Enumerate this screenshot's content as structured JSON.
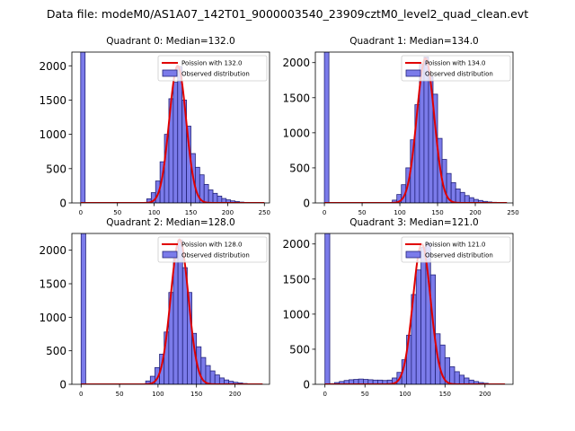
{
  "suptitle": "Data file: modeM0/AS1A07_142T01_9000003540_23909cztM0_level2_quad_clean.evt",
  "colors": {
    "bar_fill": "#7b7bea",
    "bar_edge": "#23237a",
    "line": "#e00000"
  },
  "chart_data": [
    {
      "type": "bar",
      "title": "Quadrant 0: Median=132.0",
      "median": 132.0,
      "xlim": [
        -12,
        257
      ],
      "ylim": [
        0,
        2200
      ],
      "xticks": [
        0,
        50,
        100,
        150,
        200,
        250
      ],
      "yticks": [
        0,
        500,
        1000,
        1500,
        2000
      ],
      "legend": {
        "placement": "top-right",
        "line_label": "Poission with 132.0",
        "bar_label": "Observed distribution"
      },
      "bin_width": 6,
      "bins": [
        {
          "x": 0,
          "y": 2200
        },
        {
          "x": 90,
          "y": 60
        },
        {
          "x": 96,
          "y": 150
        },
        {
          "x": 102,
          "y": 320
        },
        {
          "x": 108,
          "y": 600
        },
        {
          "x": 114,
          "y": 1000
        },
        {
          "x": 120,
          "y": 1520
        },
        {
          "x": 126,
          "y": 1760
        },
        {
          "x": 132,
          "y": 1990
        },
        {
          "x": 138,
          "y": 1500
        },
        {
          "x": 144,
          "y": 1120
        },
        {
          "x": 150,
          "y": 720
        },
        {
          "x": 156,
          "y": 520
        },
        {
          "x": 162,
          "y": 410
        },
        {
          "x": 168,
          "y": 270
        },
        {
          "x": 174,
          "y": 190
        },
        {
          "x": 180,
          "y": 140
        },
        {
          "x": 186,
          "y": 100
        },
        {
          "x": 192,
          "y": 65
        },
        {
          "x": 198,
          "y": 45
        },
        {
          "x": 204,
          "y": 30
        },
        {
          "x": 210,
          "y": 20
        },
        {
          "x": 216,
          "y": 12
        },
        {
          "x": 222,
          "y": 8
        }
      ],
      "curve": {
        "x_start": 0,
        "x_end": 250,
        "center": 132,
        "sigma": 11.5,
        "peak": 2000
      }
    },
    {
      "type": "bar",
      "title": "Quadrant 1: Median=134.0",
      "median": 134.0,
      "xlim": [
        -12,
        250
      ],
      "ylim": [
        0,
        2150
      ],
      "xticks": [
        0,
        50,
        100,
        150,
        200,
        250
      ],
      "yticks": [
        0,
        500,
        1000,
        1500,
        2000
      ],
      "legend": {
        "placement": "top-right",
        "line_label": "Poission with 134.0",
        "bar_label": "Observed distribution"
      },
      "bin_width": 6,
      "bins": [
        {
          "x": 0,
          "y": 2150
        },
        {
          "x": 90,
          "y": 40
        },
        {
          "x": 96,
          "y": 120
        },
        {
          "x": 102,
          "y": 260
        },
        {
          "x": 108,
          "y": 500
        },
        {
          "x": 114,
          "y": 900
        },
        {
          "x": 120,
          "y": 1400
        },
        {
          "x": 126,
          "y": 1980
        },
        {
          "x": 132,
          "y": 2080
        },
        {
          "x": 138,
          "y": 1800
        },
        {
          "x": 144,
          "y": 1550
        },
        {
          "x": 150,
          "y": 920
        },
        {
          "x": 156,
          "y": 620
        },
        {
          "x": 162,
          "y": 420
        },
        {
          "x": 168,
          "y": 290
        },
        {
          "x": 174,
          "y": 200
        },
        {
          "x": 180,
          "y": 150
        },
        {
          "x": 186,
          "y": 105
        },
        {
          "x": 192,
          "y": 75
        },
        {
          "x": 198,
          "y": 50
        },
        {
          "x": 204,
          "y": 35
        },
        {
          "x": 210,
          "y": 22
        },
        {
          "x": 216,
          "y": 14
        },
        {
          "x": 222,
          "y": 9
        }
      ],
      "curve": {
        "x_start": 0,
        "x_end": 242,
        "center": 134,
        "sigma": 11.5,
        "peak": 2060
      }
    },
    {
      "type": "bar",
      "title": "Quadrant 2: Median=128.0",
      "median": 128.0,
      "xlim": [
        -12,
        245
      ],
      "ylim": [
        0,
        2250
      ],
      "xticks": [
        0,
        50,
        100,
        150,
        200
      ],
      "yticks": [
        0,
        500,
        1000,
        1500,
        2000
      ],
      "legend": {
        "placement": "top-right",
        "line_label": "Poission with 128.0",
        "bar_label": "Observed distribution"
      },
      "bin_width": 6,
      "bins": [
        {
          "x": 0,
          "y": 2250
        },
        {
          "x": 84,
          "y": 50
        },
        {
          "x": 90,
          "y": 120
        },
        {
          "x": 96,
          "y": 250
        },
        {
          "x": 102,
          "y": 450
        },
        {
          "x": 108,
          "y": 780
        },
        {
          "x": 114,
          "y": 1370
        },
        {
          "x": 120,
          "y": 1880
        },
        {
          "x": 126,
          "y": 2150
        },
        {
          "x": 132,
          "y": 1740
        },
        {
          "x": 138,
          "y": 1370
        },
        {
          "x": 144,
          "y": 760
        },
        {
          "x": 150,
          "y": 560
        },
        {
          "x": 156,
          "y": 400
        },
        {
          "x": 162,
          "y": 280
        },
        {
          "x": 168,
          "y": 200
        },
        {
          "x": 174,
          "y": 140
        },
        {
          "x": 180,
          "y": 95
        },
        {
          "x": 186,
          "y": 65
        },
        {
          "x": 192,
          "y": 45
        },
        {
          "x": 198,
          "y": 30
        },
        {
          "x": 204,
          "y": 20
        },
        {
          "x": 210,
          "y": 12
        }
      ],
      "curve": {
        "x_start": 0,
        "x_end": 236,
        "center": 128,
        "sigma": 11.5,
        "peak": 2160
      }
    },
    {
      "type": "bar",
      "title": "Quadrant 3: Median=121.0",
      "median": 121.0,
      "xlim": [
        -12,
        235
      ],
      "ylim": [
        0,
        2150
      ],
      "xticks": [
        0,
        50,
        100,
        150,
        200
      ],
      "yticks": [
        0,
        500,
        1000,
        1500,
        2000
      ],
      "legend": {
        "placement": "top-right",
        "line_label": "Poission with 121.0",
        "bar_label": "Observed distribution"
      },
      "bin_width": 6,
      "bins": [
        {
          "x": 0,
          "y": 2150
        },
        {
          "x": 6,
          "y": 10
        },
        {
          "x": 12,
          "y": 25
        },
        {
          "x": 18,
          "y": 40
        },
        {
          "x": 24,
          "y": 55
        },
        {
          "x": 30,
          "y": 65
        },
        {
          "x": 36,
          "y": 70
        },
        {
          "x": 42,
          "y": 75
        },
        {
          "x": 48,
          "y": 70
        },
        {
          "x": 54,
          "y": 65
        },
        {
          "x": 60,
          "y": 60
        },
        {
          "x": 66,
          "y": 60
        },
        {
          "x": 72,
          "y": 55
        },
        {
          "x": 78,
          "y": 60
        },
        {
          "x": 84,
          "y": 90
        },
        {
          "x": 90,
          "y": 170
        },
        {
          "x": 96,
          "y": 350
        },
        {
          "x": 102,
          "y": 700
        },
        {
          "x": 108,
          "y": 1280
        },
        {
          "x": 114,
          "y": 1630
        },
        {
          "x": 120,
          "y": 1950
        },
        {
          "x": 126,
          "y": 2010
        },
        {
          "x": 132,
          "y": 1560
        },
        {
          "x": 138,
          "y": 720
        },
        {
          "x": 144,
          "y": 560
        },
        {
          "x": 150,
          "y": 380
        },
        {
          "x": 156,
          "y": 250
        },
        {
          "x": 162,
          "y": 180
        },
        {
          "x": 168,
          "y": 130
        },
        {
          "x": 174,
          "y": 90
        },
        {
          "x": 180,
          "y": 60
        },
        {
          "x": 186,
          "y": 40
        },
        {
          "x": 192,
          "y": 25
        },
        {
          "x": 198,
          "y": 15
        }
      ],
      "curve": {
        "x_start": 0,
        "x_end": 225,
        "center": 121,
        "sigma": 11,
        "peak": 2000
      }
    }
  ]
}
